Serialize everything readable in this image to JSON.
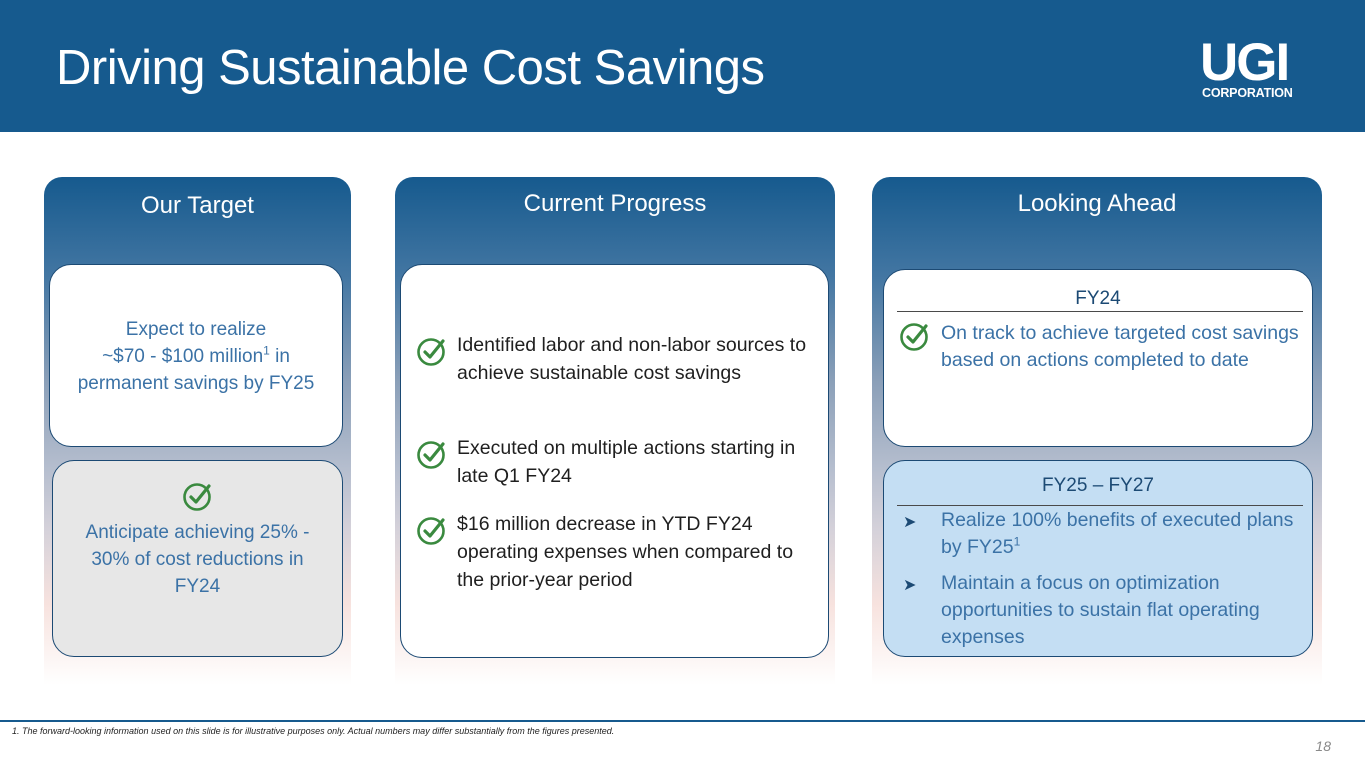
{
  "header": {
    "title": "Driving Sustainable Cost Savings",
    "logo_main": "UGI",
    "logo_sub": "CORPORATION"
  },
  "our_target": {
    "heading": "Our Target",
    "card1": {
      "line1": "Expect to realize",
      "line2_pre": "~$70 - $100 million",
      "line2_sup": "1",
      "line2_post": " in",
      "line3": "permanent savings by FY25"
    },
    "card2": {
      "icon": "check-circle-icon",
      "text": "Anticipate achieving 25% - 30% of cost reductions in FY24"
    }
  },
  "current_progress": {
    "heading": "Current Progress",
    "items": [
      {
        "icon": "check-circle-icon",
        "text": "Identified labor and non-labor sources to achieve sustainable cost savings"
      },
      {
        "icon": "check-circle-icon",
        "text": "Executed on multiple actions starting in late Q1 FY24"
      },
      {
        "icon": "check-circle-icon",
        "text": "$16 million decrease in YTD FY24 operating expenses when compared to the prior-year period"
      }
    ]
  },
  "looking_ahead": {
    "heading": "Looking Ahead",
    "fy24": {
      "heading": "FY24",
      "item": {
        "icon": "check-circle-icon",
        "text": "On track to achieve targeted cost savings based on actions completed to date"
      }
    },
    "fy25_27": {
      "heading": "FY25 – FY27",
      "items": [
        {
          "icon": "arrow-bullet-icon",
          "text_pre": "Realize 100% benefits of executed plans by FY25",
          "sup": "1"
        },
        {
          "icon": "arrow-bullet-icon",
          "text_pre": "Maintain a focus on optimization opportunities to sustain flat operating expenses",
          "sup": ""
        }
      ]
    }
  },
  "footer": {
    "footnote": "1. The forward-looking information used on this slide is for illustrative purposes only. Actual numbers may differ substantially from the figures presented.",
    "page_number": "18"
  },
  "colors": {
    "brand_blue": "#165a8e",
    "text_blue": "#3b72a6",
    "check_green": "#3a8a3f",
    "card_border": "#1c4a74"
  }
}
